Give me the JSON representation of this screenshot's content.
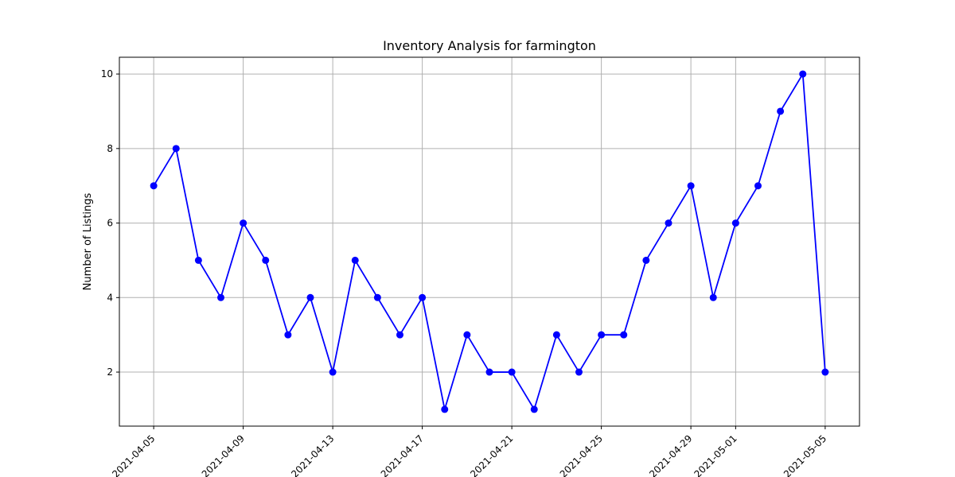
{
  "chart_data": {
    "type": "line",
    "title": "Inventory Analysis for farmington",
    "xlabel": "",
    "ylabel": "Number of Listings",
    "x": [
      "2021-04-05",
      "2021-04-06",
      "2021-04-07",
      "2021-04-08",
      "2021-04-09",
      "2021-04-10",
      "2021-04-11",
      "2021-04-12",
      "2021-04-13",
      "2021-04-14",
      "2021-04-15",
      "2021-04-16",
      "2021-04-17",
      "2021-04-18",
      "2021-04-19",
      "2021-04-20",
      "2021-04-21",
      "2021-04-22",
      "2021-04-23",
      "2021-04-24",
      "2021-04-25",
      "2021-04-26",
      "2021-04-27",
      "2021-04-28",
      "2021-04-29",
      "2021-04-30",
      "2021-05-01",
      "2021-05-02",
      "2021-05-03",
      "2021-05-04",
      "2021-05-05"
    ],
    "series": [
      {
        "values": [
          7,
          8,
          5,
          4,
          6,
          5,
          3,
          4,
          2,
          5,
          4,
          3,
          4,
          1,
          3,
          2,
          2,
          1,
          3,
          2,
          3,
          3,
          5,
          6,
          7,
          4,
          6,
          7,
          9,
          10,
          2
        ]
      }
    ],
    "x_ticks": [
      "2021-04-05",
      "2021-04-09",
      "2021-04-13",
      "2021-04-17",
      "2021-04-21",
      "2021-04-25",
      "2021-04-29",
      "2021-05-01",
      "2021-05-05"
    ],
    "y_ticks": [
      2,
      4,
      6,
      8,
      10
    ],
    "ylim": [
      0.55,
      10.45
    ],
    "xlim": [
      "2021-04-03T11:12",
      "2021-05-06T12:48"
    ],
    "grid": true,
    "line_color": "#0000ff",
    "marker_color": "#0000ff",
    "marker": "circle"
  }
}
